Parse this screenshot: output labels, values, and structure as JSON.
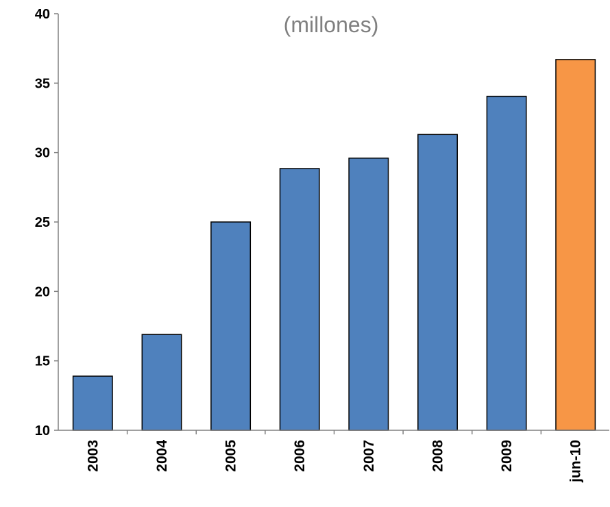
{
  "chart_data": {
    "type": "bar",
    "title": "",
    "subtitle": "(millones)",
    "xlabel": "",
    "ylabel": "",
    "categories": [
      "2003",
      "2004",
      "2005",
      "2006",
      "2007",
      "2008",
      "2009",
      "jun-10"
    ],
    "values": [
      13.9,
      16.9,
      25.0,
      28.85,
      29.6,
      31.3,
      34.05,
      36.7
    ],
    "ylim": [
      10,
      40
    ],
    "yticks": [
      "10",
      "15",
      "20",
      "25",
      "30",
      "35",
      "40"
    ],
    "grid": false,
    "legend": "none",
    "colors": {
      "bar": "#4F81BD",
      "highlight": "#F79646",
      "highlight_category": "jun-10",
      "outline": "#000000",
      "axis": "#808080",
      "subtitle": "#808080"
    }
  }
}
